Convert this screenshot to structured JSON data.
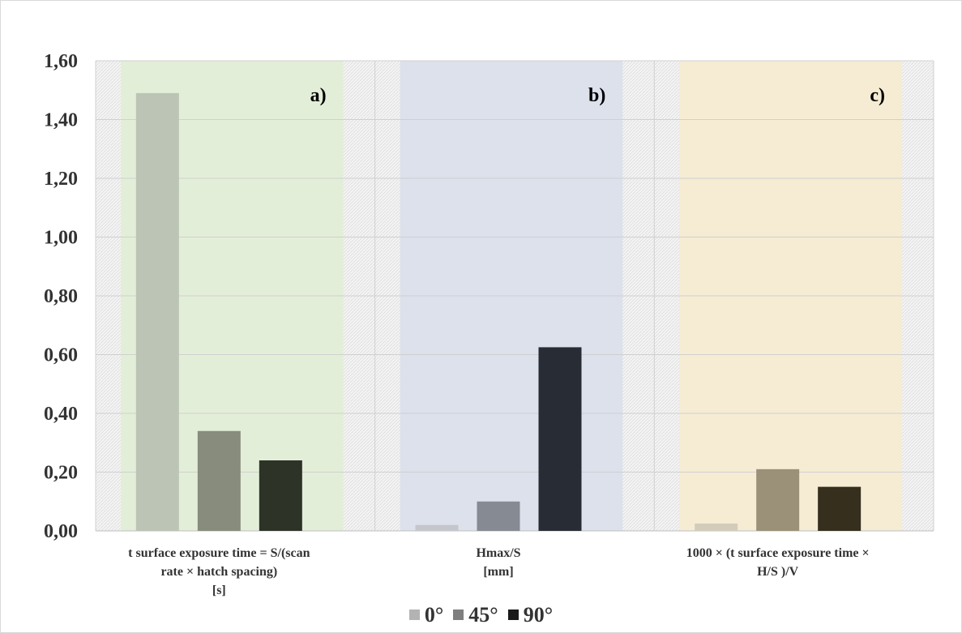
{
  "chart_data": {
    "type": "bar",
    "categories": [
      "t surface exposure time =  S/(scan rate × hatch spacing) [s]",
      "Hmax/S [mm]",
      "1000 × (t surface exposure time × H/S )/V"
    ],
    "category_label_lines": [
      [
        "t surface exposure time =  S/(scan",
        "rate × hatch spacing)",
        "[s]"
      ],
      [
        "Hmax/S",
        "[mm]"
      ],
      [
        "1000 × (t surface exposure time ×",
        "H/S )/V"
      ]
    ],
    "panel_labels": [
      "a)",
      "b)",
      "c)"
    ],
    "series": [
      {
        "name": "0°",
        "values": [
          1.49,
          0.02,
          0.025
        ],
        "colors": [
          "#bcc4b6",
          "#c4c6cc",
          "#d3ccba"
        ]
      },
      {
        "name": "45°",
        "values": [
          0.34,
          0.1,
          0.21
        ],
        "colors": [
          "#878c7d",
          "#868a93",
          "#9b9178"
        ]
      },
      {
        "name": "90°",
        "values": [
          0.24,
          0.625,
          0.15
        ],
        "colors": [
          "#2e3327",
          "#282c35",
          "#362f1e"
        ]
      }
    ],
    "legend_colors": [
      "#b3b3b3",
      "#7f7f7f",
      "#1a1a1a"
    ],
    "panel_colors": [
      "#e3eed8",
      "#dce1ec",
      "#f6ecd4"
    ],
    "yticks": [
      "0,00",
      "0,20",
      "0,40",
      "0,60",
      "0,80",
      "1,00",
      "1,20",
      "1,40",
      "1,60"
    ],
    "ylim": [
      0,
      1.6
    ],
    "grid": true,
    "legend_position": "bottom",
    "title": "",
    "xlabel": "",
    "ylabel": ""
  }
}
